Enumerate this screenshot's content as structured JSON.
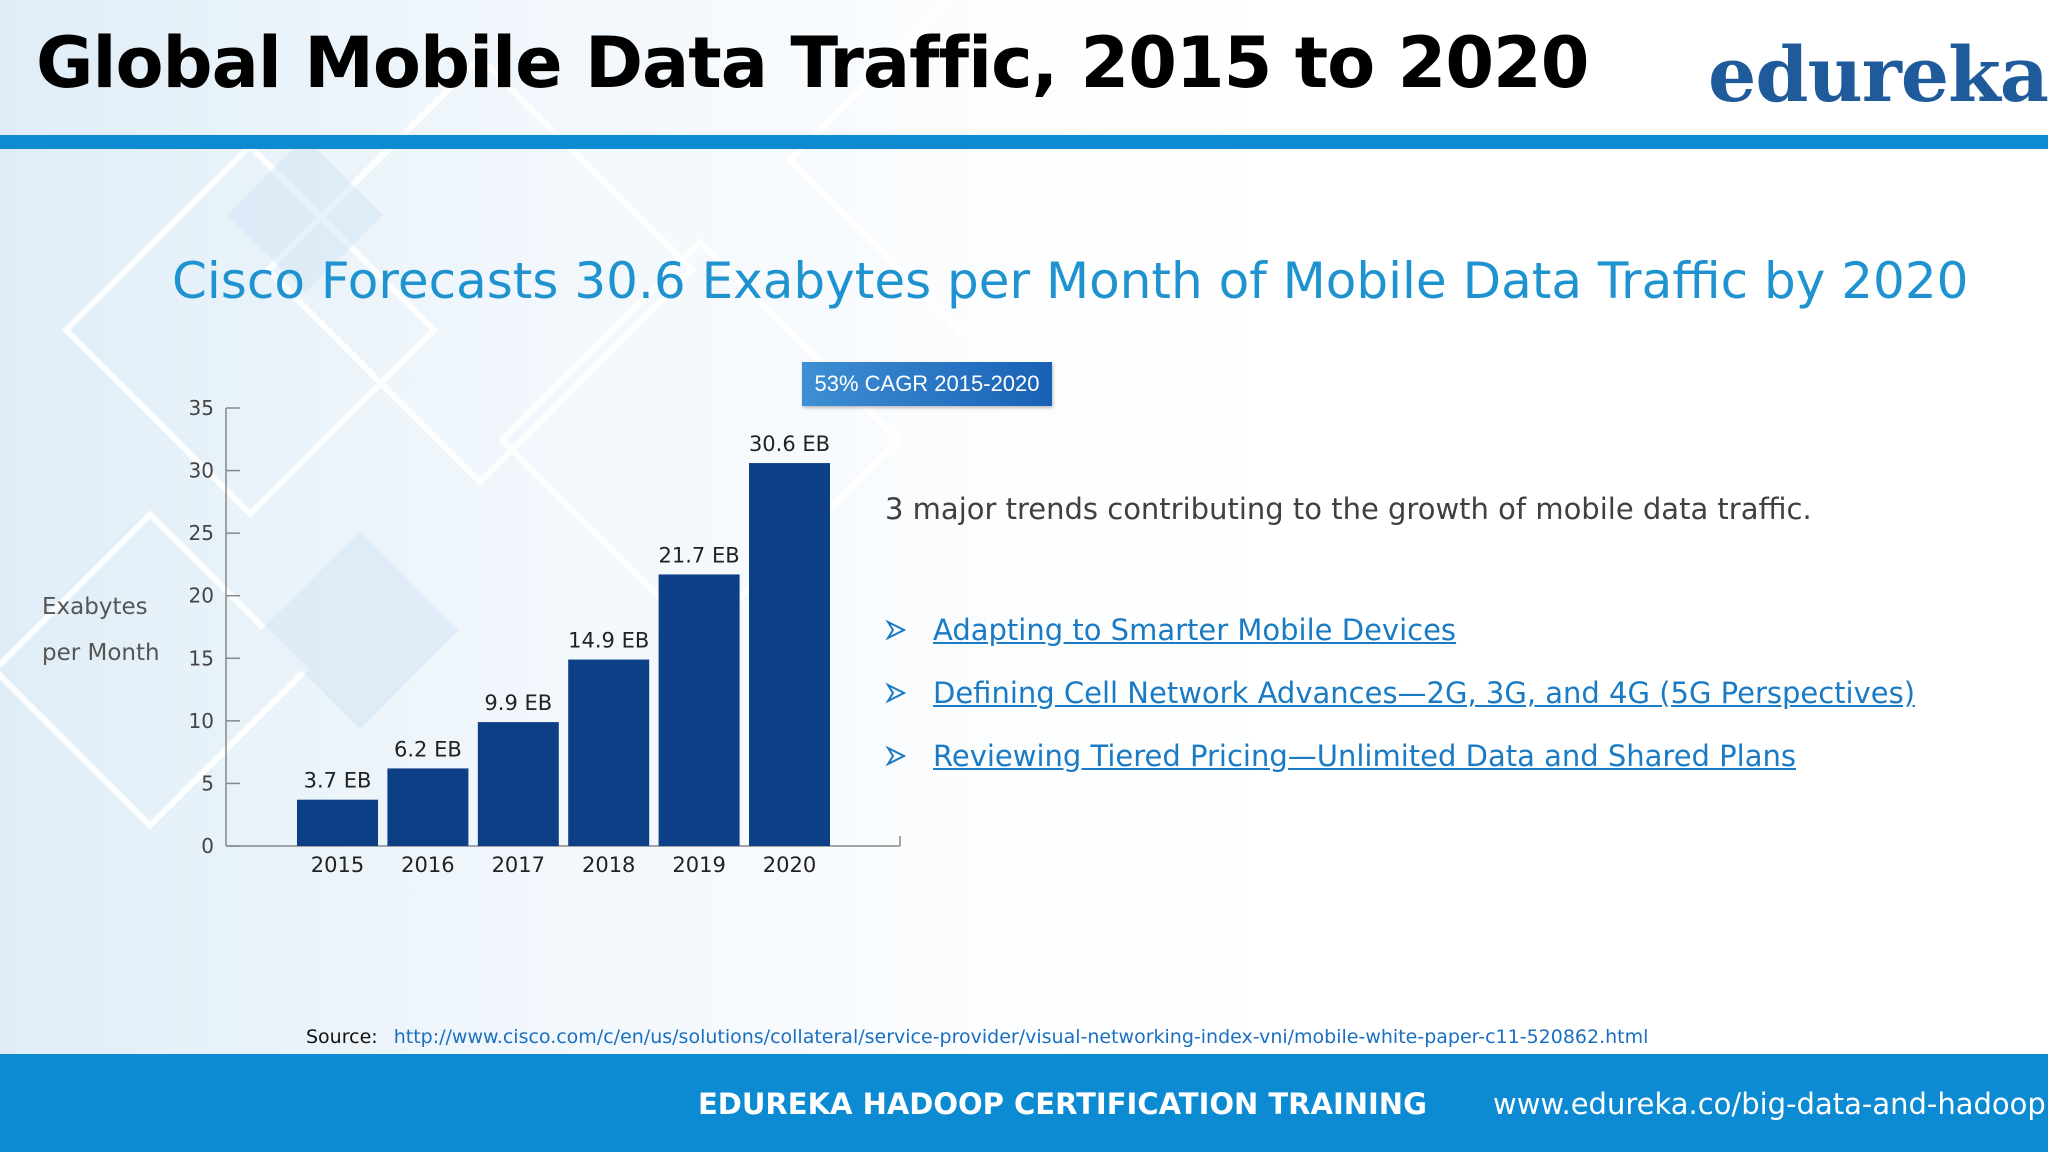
{
  "slide": {
    "title": "Global Mobile Data Traffic, 2015 to 2020",
    "logo": "edureka!",
    "subtitle": "Cisco Forecasts 30.6 Exabytes per Month of Mobile Data Traffic by 2020",
    "badge": "53% CAGR 2015-2020",
    "intro": "3 major trends contributing to the growth of mobile data traffic.",
    "trends": [
      "Adapting to Smarter Mobile Devices",
      "Defining Cell Network Advances—2G, 3G, and 4G (5G Perspectives)",
      "Reviewing Tiered Pricing—Unlimited Data and Shared Plans"
    ],
    "source_label": "Source:",
    "source_url": "http://www.cisco.com/c/en/us/solutions/collateral/service-provider/visual-networking-index-vni/mobile-white-paper-c11-520862.html",
    "footer_center": "EDUREKA HADOOP CERTIFICATION TRAINING",
    "footer_url": "www.edureka.co/big-data-and-hadoop"
  },
  "colors": {
    "accent": "#0c8ad2",
    "bar": "#0d3f87",
    "title_text": "#1f93d0",
    "link": "#1a7bc4"
  },
  "icons": {
    "bullet": "arrow-bullet-icon"
  },
  "chart_data": {
    "type": "bar",
    "categories": [
      "2015",
      "2016",
      "2017",
      "2018",
      "2019",
      "2020"
    ],
    "values": [
      3.7,
      6.2,
      9.9,
      14.9,
      21.7,
      30.6
    ],
    "data_labels": [
      "3.7 EB",
      "6.2 EB",
      "9.9 EB",
      "14.9 EB",
      "21.7 EB",
      "30.6 EB"
    ],
    "ylabel_lines": [
      "Exabytes",
      "per Month"
    ],
    "ylim": [
      0,
      35
    ],
    "yticks": [
      0,
      5,
      10,
      15,
      20,
      25,
      30,
      35
    ],
    "grid": false,
    "legend": "none"
  }
}
